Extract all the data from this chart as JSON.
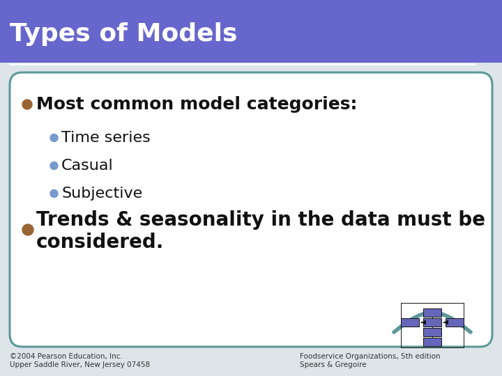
{
  "title": "Types of Models",
  "title_bg_color": "#6666cc",
  "title_text_color": "#ffffff",
  "slide_bg_color": "#ffffff",
  "slide_bg_color2": "#e8eef0",
  "border_color": "#5c9999",
  "bullet1_text": "Most common model categories:",
  "bullet1_color": "#996633",
  "sub_bullets": [
    "Time series",
    "Casual",
    "Subjective"
  ],
  "sub_bullet_color": "#7799cc",
  "bullet2_text_line1": "Trends & seasonality in the data must be",
  "bullet2_text_line2": "considered.",
  "bullet2_color": "#996633",
  "footer_left_line1": "©2004 Pearson Education, Inc.",
  "footer_left_line2": "Upper Saddle River, New Jersey 07458",
  "footer_right_line1": "Foodservice Organizations, 5th edition",
  "footer_right_line2": "Spears & Gregoire",
  "footer_color": "#333333",
  "divider_color": "#ffffff",
  "main_text_color": "#111111",
  "title_bar_height": 90,
  "title_fontsize": 26,
  "bullet1_fontsize": 18,
  "sub_fontsize": 16,
  "bullet2_fontsize": 20,
  "footer_fontsize": 7.5,
  "diagram_box_color": "#6666bb"
}
